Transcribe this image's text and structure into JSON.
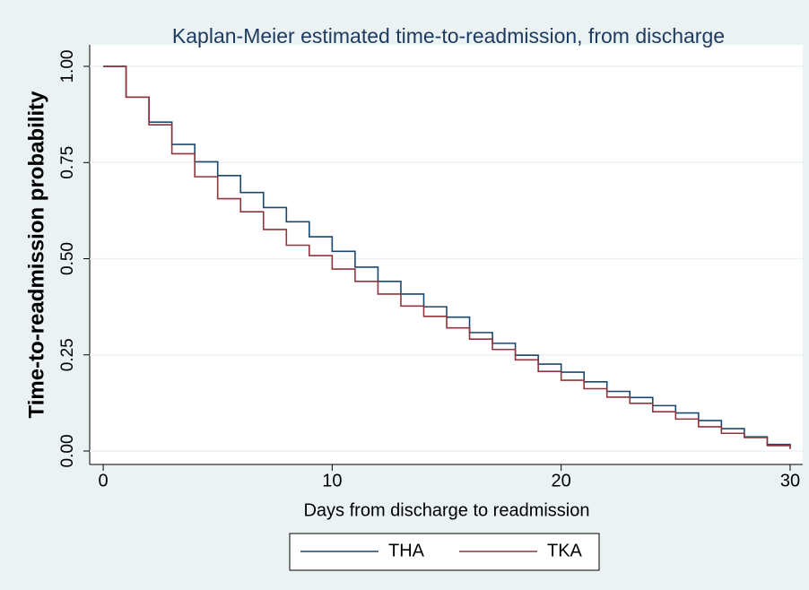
{
  "chart_data": {
    "type": "step",
    "title": "Kaplan-Meier estimated time-to-readmission, from discharge",
    "x_label": "Days from discharge to readmission",
    "y_label": "Time-to-readmission probability",
    "x": [
      0,
      1,
      2,
      3,
      4,
      5,
      6,
      7,
      8,
      9,
      10,
      11,
      12,
      13,
      14,
      15,
      16,
      17,
      18,
      19,
      20,
      21,
      22,
      23,
      24,
      25,
      26,
      27,
      28,
      29,
      30
    ],
    "series": [
      {
        "name": "THA",
        "color": "#1a476f",
        "values": [
          1.0,
          0.92,
          0.855,
          0.797,
          0.752,
          0.716,
          0.672,
          0.633,
          0.596,
          0.557,
          0.519,
          0.478,
          0.441,
          0.408,
          0.375,
          0.348,
          0.308,
          0.28,
          0.249,
          0.226,
          0.205,
          0.18,
          0.155,
          0.139,
          0.118,
          0.099,
          0.079,
          0.058,
          0.037,
          0.017,
          0.01
        ]
      },
      {
        "name": "TKA",
        "color": "#90353b",
        "values": [
          1.0,
          0.92,
          0.848,
          0.773,
          0.713,
          0.656,
          0.622,
          0.576,
          0.535,
          0.508,
          0.473,
          0.441,
          0.408,
          0.377,
          0.35,
          0.32,
          0.291,
          0.264,
          0.237,
          0.207,
          0.184,
          0.162,
          0.14,
          0.124,
          0.102,
          0.083,
          0.063,
          0.046,
          0.035,
          0.014,
          0.005
        ]
      }
    ],
    "xlim": [
      -0.59,
      30.55
    ],
    "xticks": [
      0,
      10,
      20,
      30
    ],
    "ylim": [
      -0.035,
      1.056
    ],
    "yticks": [
      {
        "value": 0,
        "label": "0.00"
      },
      {
        "value": 0.25,
        "label": "0.25"
      },
      {
        "value": 0.5,
        "label": "0.50"
      },
      {
        "value": 0.75,
        "label": "0.75"
      },
      {
        "value": 1,
        "label": "1.00"
      }
    ],
    "grid": true,
    "legend": "bottom"
  }
}
